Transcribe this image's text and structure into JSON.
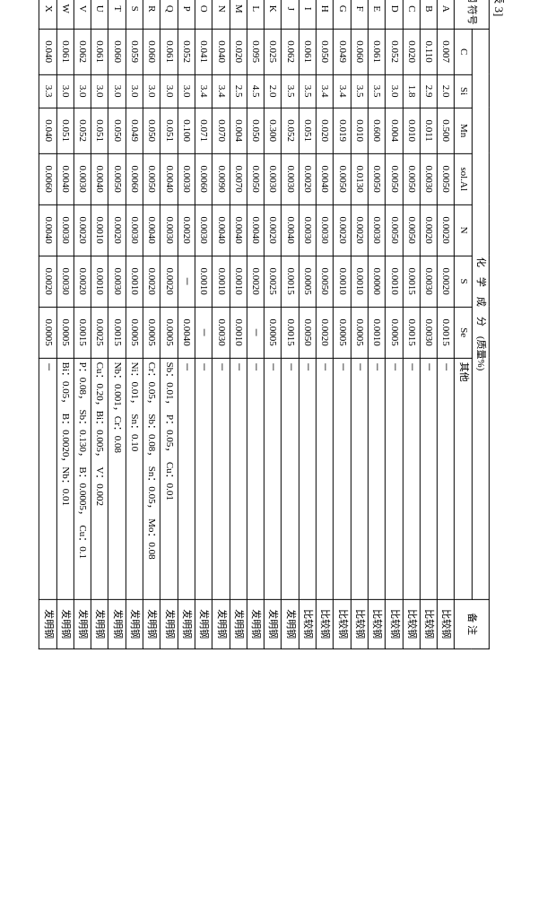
{
  "caption": "[表 3]",
  "headers": {
    "symbol": "钢\n符号",
    "group": "化　学　成　分　(质量%)",
    "cols": [
      "C",
      "Si",
      "Mn",
      "sol.Al",
      "N",
      "S",
      "Se",
      "其他"
    ],
    "remark": "备 注"
  },
  "remark_values": {
    "compare": "比较钢",
    "invent": "发明钢"
  },
  "rows": [
    {
      "sym": "A",
      "C": "0.007",
      "Si": "2.0",
      "Mn": "0.500",
      "Al": "0.0050",
      "N": "0.0020",
      "S": "0.0020",
      "Se": "0.0015",
      "other": "－",
      "r": "compare"
    },
    {
      "sym": "B",
      "C": "0.110",
      "Si": "2.9",
      "Mn": "0.011",
      "Al": "0.0030",
      "N": "0.0020",
      "S": "0.0030",
      "Se": "0.0030",
      "other": "－",
      "r": "compare"
    },
    {
      "sym": "C",
      "C": "0.020",
      "Si": "1.8",
      "Mn": "0.010",
      "Al": "0.0050",
      "N": "0.0050",
      "S": "0.0015",
      "Se": "0.0015",
      "other": "－",
      "r": "compare"
    },
    {
      "sym": "D",
      "C": "0.052",
      "Si": "3.0",
      "Mn": "0.004",
      "Al": "0.0050",
      "N": "0.0050",
      "S": "0.0010",
      "Se": "0.0005",
      "other": "－",
      "r": "compare"
    },
    {
      "sym": "E",
      "C": "0.061",
      "Si": "3.5",
      "Mn": "0.600",
      "Al": "0.0050",
      "N": "0.0030",
      "S": "0.0000",
      "Se": "0.0010",
      "other": "－",
      "r": "compare"
    },
    {
      "sym": "F",
      "C": "0.060",
      "Si": "3.5",
      "Mn": "0.010",
      "Al": "0.0130",
      "N": "0.0020",
      "S": "0.0010",
      "Se": "0.0005",
      "other": "－",
      "r": "compare"
    },
    {
      "sym": "G",
      "C": "0.049",
      "Si": "3.4",
      "Mn": "0.019",
      "Al": "0.0050",
      "N": "0.0020",
      "S": "0.0010",
      "Se": "0.0005",
      "other": "－",
      "r": "compare"
    },
    {
      "sym": "H",
      "C": "0.050",
      "Si": "3.4",
      "Mn": "0.020",
      "Al": "0.0040",
      "N": "0.0030",
      "S": "0.0050",
      "Se": "0.0020",
      "other": "－",
      "r": "compare"
    },
    {
      "sym": "I",
      "C": "0.061",
      "Si": "3.5",
      "Mn": "0.051",
      "Al": "0.0020",
      "N": "0.0030",
      "S": "0.0005",
      "Se": "0.0050",
      "other": "－",
      "r": "compare"
    },
    {
      "sym": "J",
      "C": "0.062",
      "Si": "3.5",
      "Mn": "0.052",
      "Al": "0.0030",
      "N": "0.0040",
      "S": "0.0015",
      "Se": "0.0015",
      "other": "－",
      "r": "invent"
    },
    {
      "sym": "K",
      "C": "0.025",
      "Si": "2.0",
      "Mn": "0.300",
      "Al": "0.0030",
      "N": "0.0020",
      "S": "0.0025",
      "Se": "0.0005",
      "other": "－",
      "r": "invent"
    },
    {
      "sym": "L",
      "C": "0.095",
      "Si": "4.5",
      "Mn": "0.050",
      "Al": "0.0050",
      "N": "0.0040",
      "S": "0.0020",
      "Se": "－",
      "other": "－",
      "r": "invent"
    },
    {
      "sym": "M",
      "C": "0.020",
      "Si": "2.5",
      "Mn": "0.004",
      "Al": "0.0070",
      "N": "0.0040",
      "S": "0.0010",
      "Se": "0.0010",
      "other": "－",
      "r": "invent"
    },
    {
      "sym": "N",
      "C": "0.040",
      "Si": "3.4",
      "Mn": "0.070",
      "Al": "0.0090",
      "N": "0.0040",
      "S": "0.0010",
      "Se": "0.0030",
      "other": "－",
      "r": "invent"
    },
    {
      "sym": "O",
      "C": "0.041",
      "Si": "3.4",
      "Mn": "0.071",
      "Al": "0.0060",
      "N": "0.0030",
      "S": "0.0010",
      "Se": "－",
      "other": "－",
      "r": "invent"
    },
    {
      "sym": "P",
      "C": "0.052",
      "Si": "3.0",
      "Mn": "0.100",
      "Al": "0.0030",
      "N": "0.0020",
      "S": "－",
      "Se": "0.0040",
      "other": "－",
      "r": "invent"
    },
    {
      "sym": "Q",
      "C": "0.061",
      "Si": "3.0",
      "Mn": "0.051",
      "Al": "0.0040",
      "N": "0.0030",
      "S": "0.0020",
      "Se": "0.0005",
      "other": "Sb：0.01，　P：0.05，　Cu：0.01",
      "r": "invent"
    },
    {
      "sym": "R",
      "C": "0.060",
      "Si": "3.0",
      "Mn": "0.050",
      "Al": "0.0050",
      "N": "0.0040",
      "S": "0.0020",
      "Se": "0.0005",
      "other": "Cr：0.05，　Sb：0.08，　Sn：0.05，　Mo：0.08",
      "r": "invent"
    },
    {
      "sym": "S",
      "C": "0.059",
      "Si": "3.0",
      "Mn": "0.049",
      "Al": "0.0060",
      "N": "0.0030",
      "S": "0.0010",
      "Se": "0.0005",
      "other": "Ni：0.01，　Sn：0.10",
      "r": "invent"
    },
    {
      "sym": "T",
      "C": "0.060",
      "Si": "3.0",
      "Mn": "0.050",
      "Al": "0.0050",
      "N": "0.0020",
      "S": "0.0030",
      "Se": "0.0015",
      "other": "Nb：0.001，Cr：0.08",
      "r": "invent"
    },
    {
      "sym": "U",
      "C": "0.061",
      "Si": "3.0",
      "Mn": "0.051",
      "Al": "0.0040",
      "N": "0.0010",
      "S": "0.0010",
      "Se": "0.0025",
      "other": "Cu：0.20，Bi：0.005，　V：0.002",
      "r": "invent"
    },
    {
      "sym": "V",
      "C": "0.062",
      "Si": "3.0",
      "Mn": "0.052",
      "Al": "0.0030",
      "N": "0.0020",
      "S": "0.0020",
      "Se": "0.0015",
      "other": "P：0.08，　Sb：0.130，　B：0.0005，　Cu：0.1",
      "r": "invent"
    },
    {
      "sym": "W",
      "C": "0.061",
      "Si": "3.0",
      "Mn": "0.051",
      "Al": "0.0040",
      "N": "0.0030",
      "S": "0.0030",
      "Se": "0.0005",
      "other": "Bi：0.05，　B：0.0020，Nb：0.01",
      "r": "invent"
    },
    {
      "sym": "X",
      "C": "0.040",
      "Si": "3.3",
      "Mn": "0.040",
      "Al": "0.0060",
      "N": "0.0040",
      "S": "0.0020",
      "Se": "0.0005",
      "other": "－",
      "r": "invent"
    }
  ],
  "style": {
    "font_family": "SimSun",
    "border_color": "#000000",
    "background_color": "#ffffff",
    "header_fontsize_pt": 11,
    "cell_fontsize_pt": 11,
    "rotation_deg": 90
  }
}
